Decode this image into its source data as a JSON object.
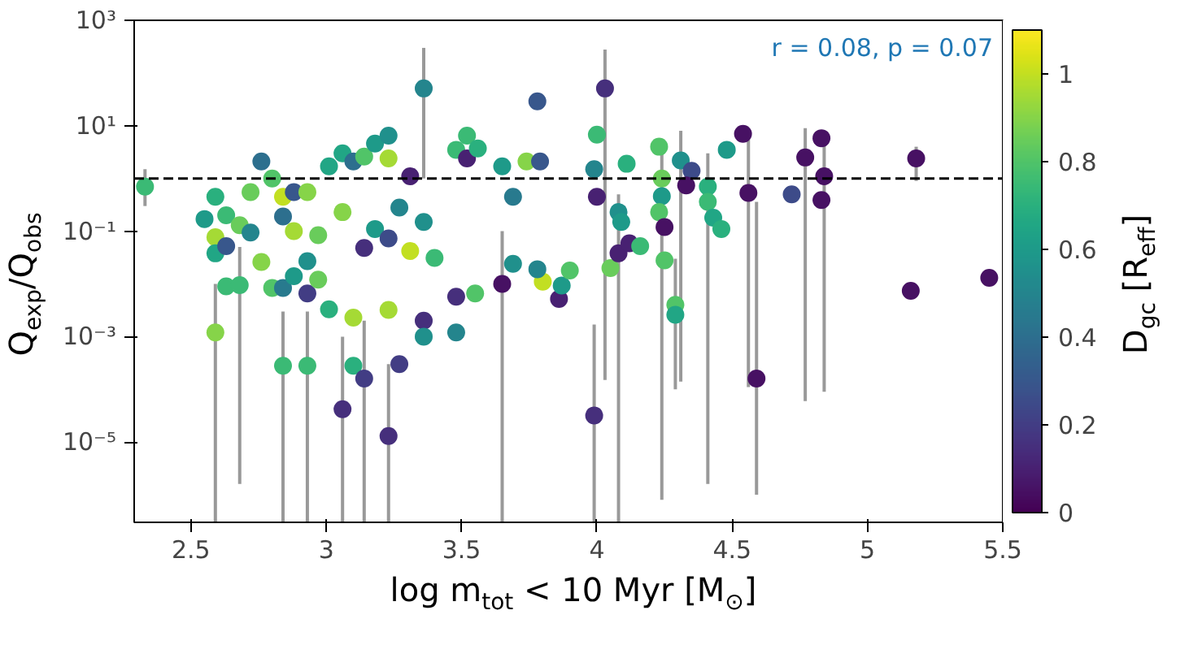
{
  "chart_data": {
    "type": "scatter",
    "xlabel": "log m$_{tot}$ < 10 Myr [M$_{⊙}$]",
    "ylabel": "Q$_{exp}$/Q$_{obs}$",
    "clabel": "D$_{gc}$ [R$_{eff}$]",
    "annotations": [
      "r = 0.08, p = 0.07"
    ],
    "log": "y",
    "grid": false,
    "marker": "circle",
    "xlim": [
      2.29,
      5.5
    ],
    "xticks": [
      2.5,
      3.0,
      3.5,
      4.0,
      4.5,
      5.0,
      5.5
    ],
    "ylim": [
      3e-07,
      1000
    ],
    "yticks": [
      {
        "value": 1e-05,
        "label": "10⁻⁵"
      },
      {
        "value": 0.001,
        "label": "10⁻³"
      },
      {
        "value": 0.1,
        "label": "10⁻¹"
      },
      {
        "value": 10,
        "label": "10¹"
      },
      {
        "value": 1000,
        "label": "10³"
      }
    ],
    "clim": [
      0,
      1.1
    ],
    "cticks": [
      0.0,
      0.2,
      0.4,
      0.6,
      0.8,
      1.0
    ],
    "ref_lines": [
      {
        "axis": "y",
        "value": 1,
        "color": "#000000",
        "line_style": "dashed"
      }
    ],
    "series": [
      {
        "x": [
          2.33,
          2.55,
          2.59,
          2.59,
          2.59,
          2.59,
          2.63,
          2.63,
          2.63,
          2.68,
          2.68,
          2.72,
          2.72,
          2.76,
          2.76,
          2.8,
          2.8,
          2.84,
          2.84,
          2.84,
          2.84,
          2.88,
          2.88,
          2.88,
          2.93,
          2.93,
          2.93,
          2.93,
          2.97,
          2.97,
          3.01,
          3.01,
          3.06,
          3.06,
          3.06,
          3.1,
          3.1,
          3.1,
          3.14,
          3.14,
          3.14,
          3.18,
          3.18,
          3.23,
          3.23,
          3.23,
          3.23,
          3.23,
          3.27,
          3.27,
          3.31,
          3.31,
          3.36,
          3.36,
          3.36,
          3.36,
          3.4,
          3.48,
          3.48,
          3.48,
          3.52,
          3.52,
          3.56,
          3.55,
          3.65,
          3.65,
          3.69,
          3.69,
          3.74,
          3.78,
          3.79,
          3.8,
          3.78,
          4.0,
          4.03,
          3.99,
          3.86,
          3.87,
          3.9,
          4.05,
          4.08,
          4.12,
          4.16,
          4.0,
          4.08,
          4.09,
          4.11,
          3.99,
          4.23,
          4.24,
          4.24,
          4.23,
          4.25,
          4.25,
          4.29,
          4.29,
          4.31,
          4.35,
          4.33,
          4.41,
          4.41,
          4.43,
          4.46,
          4.48,
          4.54,
          4.56,
          4.59,
          4.72,
          4.77,
          4.83,
          4.84,
          4.83,
          5.18,
          5.16,
          5.45
        ],
        "values": [
          0.7,
          0.17,
          0.45,
          0.0012,
          0.077,
          0.038,
          0.052,
          0.2,
          0.009,
          0.13,
          0.0095,
          0.094,
          0.55,
          2.1,
          0.026,
          0.0084,
          1.0,
          0.19,
          0.45,
          0.0084,
          0.00028,
          0.1,
          0.014,
          0.55,
          0.00028,
          0.0066,
          0.027,
          0.55,
          0.084,
          0.012,
          0.0033,
          1.7,
          4.2e-05,
          0.23,
          3.0,
          0.0023,
          2.1,
          0.00028,
          0.00016,
          2.6,
          0.048,
          4.6,
          0.11,
          1.3e-05,
          6.5,
          2.4,
          0.0032,
          0.073,
          0.0003,
          0.28,
          1.1,
          0.042,
          0.002,
          0.001,
          51,
          0.15,
          0.031,
          0.0012,
          0.0057,
          3.5,
          2.4,
          6.5,
          3.7,
          0.0066,
          0.01,
          1.7,
          0.024,
          0.45,
          2.1,
          29,
          2.1,
          0.011,
          0.019,
          6.8,
          51,
          3.2e-05,
          0.0052,
          0.0093,
          0.018,
          0.02,
          0.038,
          0.059,
          0.052,
          0.45,
          0.23,
          0.15,
          1.9,
          1.5,
          4.0,
          1.0,
          0.46,
          0.23,
          0.12,
          0.028,
          0.004,
          0.0026,
          2.2,
          1.4,
          0.74,
          0.7,
          0.36,
          0.18,
          0.11,
          3.5,
          7.0,
          0.53,
          0.00016,
          0.5,
          2.5,
          5.8,
          1.1,
          0.39,
          2.4,
          0.0074,
          0.013
        ],
        "cvalues": [
          0.75,
          0.6,
          0.7,
          0.9,
          0.95,
          0.65,
          0.3,
          0.75,
          0.75,
          0.85,
          0.75,
          0.5,
          0.85,
          0.4,
          0.9,
          0.8,
          0.8,
          0.4,
          1.0,
          0.45,
          0.75,
          0.95,
          0.6,
          0.3,
          0.75,
          0.2,
          0.55,
          0.9,
          0.85,
          0.85,
          0.7,
          0.65,
          0.15,
          0.9,
          0.65,
          0.95,
          0.4,
          0.7,
          0.2,
          0.8,
          0.15,
          0.6,
          0.6,
          0.15,
          0.55,
          0.95,
          0.95,
          0.25,
          0.2,
          0.5,
          0.1,
          1.0,
          0.15,
          0.55,
          0.5,
          0.55,
          0.75,
          0.5,
          0.15,
          0.75,
          0.1,
          0.75,
          0.7,
          0.8,
          0.05,
          0.6,
          0.55,
          0.45,
          0.9,
          0.3,
          0.3,
          1.0,
          0.5,
          0.75,
          0.15,
          0.15,
          0.1,
          0.6,
          0.8,
          0.85,
          0.1,
          0.1,
          0.75,
          0.1,
          0.55,
          0.6,
          0.7,
          0.5,
          0.8,
          0.85,
          0.6,
          0.8,
          0.05,
          0.8,
          0.8,
          0.65,
          0.55,
          0.25,
          0.05,
          0.7,
          0.75,
          0.65,
          0.7,
          0.6,
          0.05,
          0.05,
          0.05,
          0.25,
          0.05,
          0.05,
          0.05,
          0.05,
          0.05,
          0.05,
          0.05
        ],
        "errors": [
          [
            0.3,
            1.5
          ],
          null,
          null,
          [
            3e-07,
            0.01
          ],
          null,
          null,
          null,
          null,
          null,
          null,
          [
            1.6e-06,
            0.05
          ],
          null,
          null,
          null,
          null,
          null,
          null,
          null,
          null,
          null,
          [
            3e-07,
            0.003
          ],
          null,
          null,
          null,
          [
            3e-07,
            0.003
          ],
          null,
          null,
          null,
          null,
          null,
          null,
          null,
          [
            3e-07,
            0.001
          ],
          null,
          null,
          null,
          null,
          null,
          [
            3e-07,
            0.002
          ],
          null,
          null,
          null,
          null,
          [
            3e-07,
            0.0003
          ],
          null,
          null,
          null,
          null,
          null,
          null,
          null,
          null,
          null,
          null,
          [
            1,
            300
          ],
          null,
          null,
          null,
          null,
          null,
          null,
          null,
          null,
          null,
          [
            3e-07,
            0.1
          ],
          null,
          null,
          null,
          null,
          null,
          null,
          null,
          null,
          null,
          [
            0.00015,
            280
          ],
          [
            3e-07,
            0.0017
          ],
          null,
          null,
          null,
          null,
          [
            3e-07,
            0.5
          ],
          null,
          null,
          null,
          null,
          null,
          null,
          null,
          null,
          [
            8e-07,
            5
          ],
          null,
          null,
          null,
          null,
          [
            0.0001,
            0.03
          ],
          null,
          [
            0.00014,
            8
          ],
          null,
          null,
          [
            1.6e-06,
            3
          ],
          null,
          null,
          null,
          null,
          null,
          [
            0.00011,
            7.0
          ],
          [
            1e-06,
            0.36
          ],
          null,
          [
            6e-05,
            9
          ],
          null,
          [
            9e-05,
            5.8
          ],
          null,
          [
            0.9,
            4
          ],
          null,
          null
        ]
      }
    ]
  }
}
